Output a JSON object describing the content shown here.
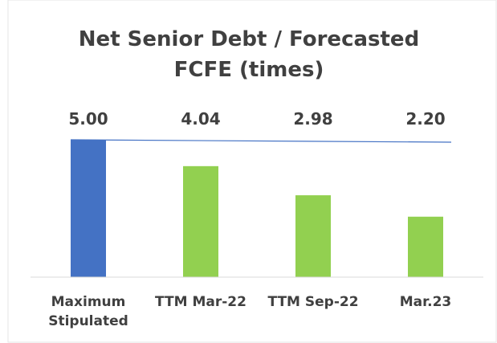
{
  "chart_data": {
    "type": "bar",
    "title": "Net Senior Debt / Forecasted FCFE (times)",
    "categories": [
      "Maximum Stipulated",
      "TTM Mar-22",
      "TTM Sep-22",
      "Mar.23"
    ],
    "values": [
      5,
      4.04,
      2.98,
      2.2
    ],
    "value_labels": [
      "5.00",
      "4.04",
      "2.98",
      "2.20"
    ],
    "colors": [
      "#4472c4",
      "#92d050",
      "#92d050",
      "#92d050"
    ],
    "ylim": [
      0,
      5
    ]
  }
}
